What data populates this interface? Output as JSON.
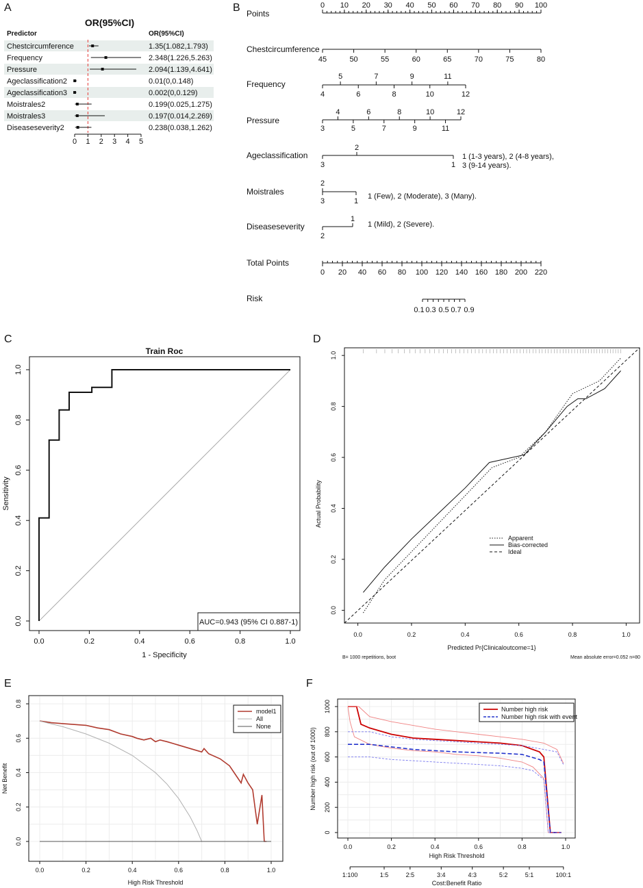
{
  "chart_data": [
    {
      "panel": "A",
      "type": "forest",
      "title": "OR(95%CI)",
      "header_left": "Predictor",
      "header_right": "OR(95%CI)",
      "rows": [
        {
          "label": "Chestcircumference",
          "or": 1.35,
          "lo": 1.082,
          "hi": 1.793,
          "text": "1.35(1.082,1.793)"
        },
        {
          "label": "Frequency",
          "or": 2.348,
          "lo": 1.226,
          "hi": 5.263,
          "text": "2.348(1.226,5.263)"
        },
        {
          "label": "Pressure",
          "or": 2.094,
          "lo": 1.139,
          "hi": 4.641,
          "text": "2.094(1.139,4.641)"
        },
        {
          "label": "Ageclassification2",
          "or": 0.01,
          "lo": 0,
          "hi": 0.148,
          "text": "0.01(0,0.148)"
        },
        {
          "label": "Ageclassification3",
          "or": 0.002,
          "lo": 0,
          "hi": 0.129,
          "text": "0.002(0,0.129)"
        },
        {
          "label": "Moistrales2",
          "or": 0.199,
          "lo": 0.025,
          "hi": 1.275,
          "text": "0.199(0.025,1.275)"
        },
        {
          "label": "Moistrales3",
          "or": 0.197,
          "lo": 0.014,
          "hi": 2.269,
          "text": "0.197(0.014,2.269)"
        },
        {
          "label": "Diseaseseverity2",
          "or": 0.238,
          "lo": 0.038,
          "hi": 1.262,
          "text": "0.238(0.038,1.262)"
        }
      ],
      "xticks": [
        0,
        1,
        2,
        3,
        4,
        5
      ],
      "xlim": [
        0,
        5
      ],
      "reference": 1
    },
    {
      "panel": "B",
      "type": "nomogram",
      "rows": [
        {
          "label": "Points",
          "scale": [
            0,
            100
          ],
          "tick_labels": [
            "0",
            "10",
            "20",
            "30",
            "40",
            "50",
            "60",
            "70",
            "80",
            "90",
            "100"
          ]
        },
        {
          "label": "Chestcircumference",
          "tick_labels": [
            "45",
            "50",
            "55",
            "60",
            "65",
            "70",
            "75",
            "80"
          ]
        },
        {
          "label": "Frequency",
          "top_labels": [
            "5",
            "7",
            "9",
            "11"
          ],
          "bottom_labels": [
            "4",
            "6",
            "8",
            "10",
            "12"
          ]
        },
        {
          "label": "Pressure",
          "top_labels": [
            "4",
            "6",
            "8",
            "10",
            "12"
          ],
          "bottom_labels": [
            "3",
            "5",
            "7",
            "9",
            "11"
          ]
        },
        {
          "label": "Ageclassification",
          "top_labels": [
            "2"
          ],
          "bottom_labels": [
            "3",
            "1"
          ],
          "note": "1 (1-3 years), 2 (4-8 years),",
          "note2": "3 (9-14 years)."
        },
        {
          "label": "Moistrales",
          "top_labels": [
            "2"
          ],
          "bottom_labels": [
            "3",
            "1"
          ],
          "note": "1 (Few), 2 (Moderate), 3 (Many)."
        },
        {
          "label": "Diseaseseverity",
          "top_labels": [
            "1"
          ],
          "bottom_labels": [
            "2"
          ],
          "note": "1 (Mild), 2 (Severe)."
        },
        {
          "label": "Total Points",
          "scale": [
            0,
            220
          ],
          "tick_labels": [
            "0",
            "20",
            "40",
            "60",
            "80",
            "100",
            "120",
            "140",
            "160",
            "180",
            "200",
            "220"
          ]
        },
        {
          "label": "Risk",
          "tick_labels": [
            "0.1",
            "0.3",
            "0.5",
            "0.7",
            "0.9"
          ]
        }
      ]
    },
    {
      "panel": "C",
      "type": "line",
      "title": "Train Roc",
      "xlabel": "1 - Specificity",
      "ylabel": "Sensitivity",
      "xlim": [
        0,
        1
      ],
      "ylim": [
        0,
        1
      ],
      "xticks": [
        "0.0",
        "0.2",
        "0.4",
        "0.6",
        "0.8",
        "1.0"
      ],
      "yticks": [
        "0.0",
        "0.2",
        "0.4",
        "0.6",
        "0.8",
        "1.0"
      ],
      "auc_text": "AUC=0.943 (95% CI 0.887-1)",
      "roc": [
        [
          0,
          0
        ],
        [
          0,
          0.41
        ],
        [
          0.04,
          0.41
        ],
        [
          0.04,
          0.72
        ],
        [
          0.08,
          0.72
        ],
        [
          0.08,
          0.84
        ],
        [
          0.12,
          0.84
        ],
        [
          0.12,
          0.91
        ],
        [
          0.21,
          0.91
        ],
        [
          0.21,
          0.93
        ],
        [
          0.29,
          0.93
        ],
        [
          0.29,
          1.0
        ],
        [
          1.0,
          1.0
        ]
      ]
    },
    {
      "panel": "D",
      "type": "line",
      "xlabel": "Predicted Pr{Clinicaloutcome=1}",
      "ylabel": "Actual Probability",
      "xticks": [
        "0.0",
        "0.2",
        "0.4",
        "0.6",
        "0.8",
        "1.0"
      ],
      "yticks": [
        "0.0",
        "0.2",
        "0.4",
        "0.6",
        "0.8",
        "1.0"
      ],
      "xlim": [
        -0.05,
        1.05
      ],
      "ylim": [
        -0.05,
        1.03
      ],
      "legend": [
        "Apparent",
        "Bias-corrected",
        "Ideal"
      ],
      "footer_left": "B= 1000 repetitions, boot",
      "footer_right": "Mean absolute error=0.052 n=80",
      "series": [
        {
          "name": "Apparent",
          "style": "dotted",
          "points": [
            [
              0.02,
              -0.01
            ],
            [
              0.1,
              0.12
            ],
            [
              0.2,
              0.23
            ],
            [
              0.3,
              0.34
            ],
            [
              0.4,
              0.45
            ],
            [
              0.5,
              0.56
            ],
            [
              0.6,
              0.6
            ],
            [
              0.7,
              0.7
            ],
            [
              0.8,
              0.85
            ],
            [
              0.86,
              0.88
            ],
            [
              0.9,
              0.9
            ],
            [
              0.98,
              0.99
            ]
          ]
        },
        {
          "name": "Bias-corrected",
          "style": "solid",
          "points": [
            [
              0.02,
              0.07
            ],
            [
              0.1,
              0.17
            ],
            [
              0.2,
              0.28
            ],
            [
              0.3,
              0.38
            ],
            [
              0.4,
              0.48
            ],
            [
              0.49,
              0.58
            ],
            [
              0.62,
              0.61
            ],
            [
              0.7,
              0.7
            ],
            [
              0.78,
              0.8
            ],
            [
              0.82,
              0.83
            ],
            [
              0.85,
              0.83
            ],
            [
              0.92,
              0.87
            ],
            [
              0.98,
              0.94
            ]
          ]
        },
        {
          "name": "Ideal",
          "style": "dashed",
          "points": [
            [
              -0.05,
              -0.05
            ],
            [
              1.05,
              1.03
            ]
          ]
        }
      ]
    },
    {
      "panel": "E",
      "type": "line",
      "xlabel": "High Risk Threshold",
      "ylabel": "Net Benefit",
      "xticks": [
        "0.0",
        "0.2",
        "0.4",
        "0.6",
        "0.8",
        "1.0"
      ],
      "yticks": [
        "0.0",
        "0.2",
        "0.4",
        "0.6",
        "0.8"
      ],
      "xlim": [
        -0.01,
        1.01
      ],
      "ylim": [
        -0.01,
        0.8
      ],
      "legend": [
        "model1",
        "All",
        "None"
      ],
      "series": [
        {
          "name": "model1",
          "color": "#b03a2e",
          "points": [
            [
              0,
              0.7
            ],
            [
              0.05,
              0.69
            ],
            [
              0.1,
              0.685
            ],
            [
              0.15,
              0.68
            ],
            [
              0.2,
              0.675
            ],
            [
              0.25,
              0.66
            ],
            [
              0.3,
              0.65
            ],
            [
              0.35,
              0.625
            ],
            [
              0.4,
              0.61
            ],
            [
              0.42,
              0.6
            ],
            [
              0.45,
              0.59
            ],
            [
              0.48,
              0.6
            ],
            [
              0.5,
              0.58
            ],
            [
              0.52,
              0.59
            ],
            [
              0.55,
              0.58
            ],
            [
              0.6,
              0.56
            ],
            [
              0.65,
              0.54
            ],
            [
              0.7,
              0.52
            ],
            [
              0.71,
              0.54
            ],
            [
              0.73,
              0.51
            ],
            [
              0.78,
              0.48
            ],
            [
              0.82,
              0.44
            ],
            [
              0.85,
              0.38
            ],
            [
              0.87,
              0.34
            ],
            [
              0.88,
              0.39
            ],
            [
              0.9,
              0.34
            ],
            [
              0.92,
              0.3
            ],
            [
              0.93,
              0.2
            ],
            [
              0.94,
              0.1
            ],
            [
              0.96,
              0.27
            ],
            [
              0.97,
              0.0
            ],
            [
              0.98,
              0.0
            ]
          ]
        },
        {
          "name": "All",
          "color": "#b0b0b0",
          "points": [
            [
              0,
              0.7
            ],
            [
              0.1,
              0.667
            ],
            [
              0.2,
              0.625
            ],
            [
              0.3,
              0.571
            ],
            [
              0.4,
              0.5
            ],
            [
              0.5,
              0.4
            ],
            [
              0.55,
              0.333
            ],
            [
              0.6,
              0.25
            ],
            [
              0.65,
              0.143
            ],
            [
              0.68,
              0.063
            ],
            [
              0.7,
              0.0
            ],
            [
              0.72,
              -0.071
            ]
          ]
        },
        {
          "name": "None",
          "color": "#555555",
          "points": [
            [
              0,
              0
            ],
            [
              1,
              0
            ]
          ]
        }
      ]
    },
    {
      "panel": "F",
      "type": "line",
      "xlabel": "High Risk Threshold",
      "ylabel": "Number high risk (out of 1000)",
      "x2label": "Cost:Benefit Ratio",
      "xticks": [
        "0.0",
        "0.2",
        "0.4",
        "0.6",
        "0.8",
        "1.0"
      ],
      "yticks": [
        "0",
        "200",
        "400",
        "600",
        "800",
        "1000"
      ],
      "cost_benefit_ticks": [
        "1:100",
        "1:5",
        "2:5",
        "3:4",
        "4:3",
        "5:2",
        "5:1",
        "100:1"
      ],
      "cost_benefit_positions": [
        0.01,
        0.1667,
        0.2857,
        0.4286,
        0.5714,
        0.7143,
        0.8333,
        0.99
      ],
      "xlim": [
        -0.01,
        1.01
      ],
      "ylim": [
        -10,
        1010
      ],
      "legend": [
        "Number high risk",
        "Number high risk with event"
      ],
      "series": [
        {
          "name": "Number high risk",
          "color": "#cc0000",
          "points": [
            [
              0,
              1000
            ],
            [
              0.04,
              1000
            ],
            [
              0.06,
              860
            ],
            [
              0.1,
              830
            ],
            [
              0.2,
              780
            ],
            [
              0.3,
              750
            ],
            [
              0.4,
              740
            ],
            [
              0.5,
              730
            ],
            [
              0.6,
              720
            ],
            [
              0.7,
              710
            ],
            [
              0.8,
              690
            ],
            [
              0.88,
              640
            ],
            [
              0.9,
              600
            ],
            [
              0.93,
              0
            ],
            [
              0.98,
              0
            ]
          ]
        },
        {
          "name": "Number high risk upper",
          "color": "#f08080",
          "points": [
            [
              0,
              1000
            ],
            [
              0.05,
              1000
            ],
            [
              0.1,
              920
            ],
            [
              0.2,
              880
            ],
            [
              0.3,
              850
            ],
            [
              0.4,
              820
            ],
            [
              0.5,
              800
            ],
            [
              0.6,
              780
            ],
            [
              0.7,
              760
            ],
            [
              0.8,
              740
            ],
            [
              0.9,
              710
            ],
            [
              0.96,
              660
            ],
            [
              0.99,
              550
            ]
          ]
        },
        {
          "name": "Number high risk lower",
          "color": "#f08080",
          "points": [
            [
              0,
              1000
            ],
            [
              0.01,
              880
            ],
            [
              0.03,
              760
            ],
            [
              0.1,
              700
            ],
            [
              0.2,
              670
            ],
            [
              0.3,
              650
            ],
            [
              0.4,
              640
            ],
            [
              0.5,
              620
            ],
            [
              0.6,
              610
            ],
            [
              0.7,
              590
            ],
            [
              0.8,
              560
            ],
            [
              0.85,
              520
            ],
            [
              0.9,
              430
            ],
            [
              0.92,
              0
            ],
            [
              0.98,
              0
            ]
          ]
        },
        {
          "name": "Number high risk with event",
          "color": "#2233cc",
          "points": [
            [
              0,
              700
            ],
            [
              0.1,
              700
            ],
            [
              0.2,
              680
            ],
            [
              0.3,
              660
            ],
            [
              0.4,
              650
            ],
            [
              0.5,
              640
            ],
            [
              0.6,
              635
            ],
            [
              0.7,
              630
            ],
            [
              0.8,
              620
            ],
            [
              0.88,
              580
            ],
            [
              0.9,
              560
            ],
            [
              0.93,
              0
            ],
            [
              0.98,
              0
            ]
          ]
        },
        {
          "name": "Number high risk with event upper",
          "color": "#7777ee",
          "points": [
            [
              0,
              800
            ],
            [
              0.1,
              800
            ],
            [
              0.2,
              760
            ],
            [
              0.3,
              740
            ],
            [
              0.4,
              730
            ],
            [
              0.5,
              720
            ],
            [
              0.6,
              710
            ],
            [
              0.7,
              700
            ],
            [
              0.8,
              690
            ],
            [
              0.9,
              660
            ],
            [
              0.96,
              640
            ],
            [
              0.99,
              540
            ]
          ]
        },
        {
          "name": "Number high risk with event lower",
          "color": "#7777ee",
          "points": [
            [
              0,
              600
            ],
            [
              0.1,
              600
            ],
            [
              0.2,
              580
            ],
            [
              0.3,
              570
            ],
            [
              0.4,
              560
            ],
            [
              0.5,
              550
            ],
            [
              0.6,
              540
            ],
            [
              0.7,
              530
            ],
            [
              0.8,
              510
            ],
            [
              0.85,
              490
            ],
            [
              0.9,
              420
            ],
            [
              0.92,
              0
            ],
            [
              0.98,
              0
            ]
          ]
        }
      ]
    }
  ],
  "panel_labels": [
    "A",
    "B",
    "C",
    "D",
    "E",
    "F"
  ]
}
